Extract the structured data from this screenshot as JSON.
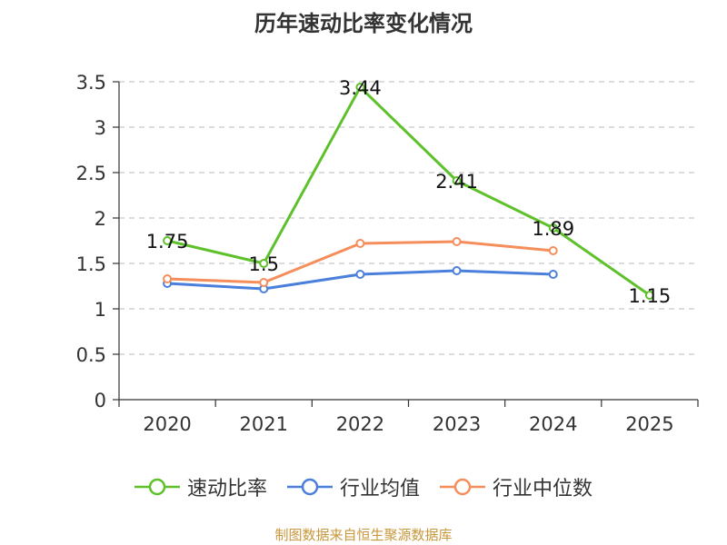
{
  "chart_data": {
    "type": "line",
    "title": "历年速动比率变化情况",
    "categories": [
      "2020",
      "2021",
      "2022",
      "2023",
      "2024",
      "2025"
    ],
    "ylim": [
      0,
      3.5
    ],
    "yticks": [
      "0",
      "0.5",
      "1",
      "1.5",
      "2",
      "2.5",
      "3",
      "3.5"
    ],
    "grid": true,
    "legend_position": "bottom",
    "series": [
      {
        "name": "速动比率",
        "color": "#5ec12b",
        "values": [
          1.75,
          1.5,
          3.44,
          2.41,
          1.89,
          1.15
        ],
        "labels": [
          "1.75",
          "1.5",
          "3.44",
          "2.41",
          "1.89",
          "1.15"
        ]
      },
      {
        "name": "行业均值",
        "color": "#4a7fdb",
        "values": [
          1.28,
          1.22,
          1.38,
          1.42,
          1.38,
          null
        ]
      },
      {
        "name": "行业中位数",
        "color": "#f58e5a",
        "values": [
          1.33,
          1.29,
          1.72,
          1.74,
          1.64,
          null
        ]
      }
    ]
  },
  "source": "制图数据来自恒生聚源数据库"
}
